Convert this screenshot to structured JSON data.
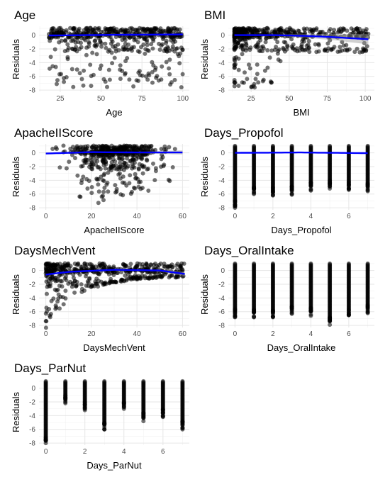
{
  "figure": {
    "ylabel": "Residuals"
  },
  "chart_data": [
    {
      "type": "scatter",
      "title": "Age",
      "xlabel": "Age",
      "ylabel": "Residuals",
      "xlim": [
        12,
        104
      ],
      "ylim": [
        -8.3,
        1.3
      ],
      "xticks": [
        25,
        50,
        75,
        100
      ],
      "yticks": [
        0,
        -2,
        -4,
        -6,
        -8
      ],
      "x_range_data": [
        18,
        100
      ],
      "distribution": "continuous-fan",
      "smooth": {
        "x": [
          18,
          60,
          100
        ],
        "y": [
          -0.05,
          0.05,
          0.1
        ]
      },
      "points_color": "#000000",
      "smooth_color": "#0000ff"
    },
    {
      "type": "scatter",
      "title": "BMI",
      "xlabel": "BMI",
      "ylabel": "Residuals",
      "xlim": [
        10,
        106
      ],
      "ylim": [
        -8.3,
        1.3
      ],
      "xticks": [
        25,
        50,
        75,
        100
      ],
      "yticks": [
        0,
        -2,
        -4,
        -6,
        -8
      ],
      "x_range_data": [
        14,
        102
      ],
      "distribution": "skewed-left",
      "smooth": {
        "x": [
          14,
          40,
          60,
          80,
          102
        ],
        "y": [
          0.0,
          0.0,
          -0.1,
          -0.3,
          -0.6
        ],
        "band": [
          0.05,
          0.1,
          0.25,
          0.45,
          0.75
        ]
      },
      "points_color": "#000000",
      "smooth_color": "#0000ff"
    },
    {
      "type": "scatter",
      "title": "ApacheIIScore",
      "xlabel": "ApacheIIScore",
      "ylabel": "Residuals",
      "xlim": [
        -3,
        63
      ],
      "ylim": [
        -8.3,
        1.3
      ],
      "xticks": [
        0,
        20,
        40,
        60
      ],
      "yticks": [
        0,
        -2,
        -4,
        -6,
        -8
      ],
      "x_range_data": [
        0,
        60
      ],
      "distribution": "continuous-hump",
      "smooth": {
        "x": [
          0,
          20,
          40,
          60
        ],
        "y": [
          -0.1,
          0.1,
          0.05,
          0.05
        ],
        "band": [
          0.15,
          0.05,
          0.1,
          0.3
        ]
      },
      "points_color": "#000000",
      "smooth_color": "#0000ff"
    },
    {
      "type": "scatter",
      "title": "Days_Propofol",
      "xlabel": "Days_Propofol",
      "ylabel": "Residuals",
      "xlim": [
        -0.35,
        7.35
      ],
      "ylim": [
        -8.3,
        1.3
      ],
      "xticks": [
        0,
        2,
        4,
        6
      ],
      "yticks": [
        0,
        -2,
        -4,
        -6,
        -8
      ],
      "discrete_x": [
        0,
        1,
        2,
        3,
        4,
        5,
        6,
        7
      ],
      "column_min": [
        -8.0,
        -6.0,
        -6.2,
        -6.1,
        -5.5,
        -5.2,
        -5.4,
        -5.6
      ],
      "smooth": {
        "x": [
          0,
          3.5,
          7
        ],
        "y": [
          0.0,
          0.05,
          -0.05
        ]
      },
      "points_color": "#000000",
      "smooth_color": "#0000ff"
    },
    {
      "type": "scatter",
      "title": "DaysMechVent",
      "xlabel": "DaysMechVent",
      "ylabel": "Residuals",
      "xlim": [
        -3,
        63
      ],
      "ylim": [
        -8.3,
        1.3
      ],
      "xticks": [
        0,
        20,
        40,
        60
      ],
      "yticks": [
        0,
        -2,
        -4,
        -6,
        -8
      ],
      "x_range_data": [
        0,
        61
      ],
      "distribution": "decaying-fan",
      "smooth": {
        "x": [
          0,
          10,
          30,
          50,
          61
        ],
        "y": [
          -0.6,
          -0.2,
          0.1,
          0.0,
          -0.5
        ],
        "band": [
          0.1,
          0.05,
          0.05,
          0.15,
          0.3
        ]
      },
      "points_color": "#000000",
      "smooth_color": "#0000ff"
    },
    {
      "type": "scatter",
      "title": "Days_OralIntake",
      "xlabel": "Days_OralIntake",
      "ylabel": "Residuals",
      "xlim": [
        -0.35,
        7.35
      ],
      "ylim": [
        -8.3,
        1.3
      ],
      "xticks": [
        0,
        2,
        4,
        6
      ],
      "yticks": [
        0,
        -2,
        -4,
        -6,
        -8
      ],
      "discrete_x": [
        0,
        1,
        2,
        3,
        4,
        5,
        6,
        7
      ],
      "column_min": [
        -6.8,
        -6.8,
        -6.8,
        -6.3,
        -6.6,
        -7.9,
        -6.5,
        -6.2
      ],
      "smooth": null,
      "points_color": "#000000",
      "smooth_color": "#0000ff"
    },
    {
      "type": "scatter",
      "title": "Days_ParNut",
      "xlabel": "Days_ParNut",
      "ylabel": "Residuals",
      "xlim": [
        -0.35,
        7.35
      ],
      "ylim": [
        -8.3,
        1.3
      ],
      "xticks": [
        0,
        2,
        4,
        6
      ],
      "yticks": [
        0,
        -2,
        -4,
        -6,
        -8
      ],
      "discrete_x": [
        0,
        1,
        2,
        3,
        4,
        5,
        6,
        7
      ],
      "column_min": [
        -8.0,
        -2.2,
        -3.2,
        -6.0,
        -3.0,
        -4.8,
        -4.2,
        -6.0
      ],
      "smooth": null,
      "points_color": "#000000",
      "smooth_color": "#0000ff"
    }
  ]
}
